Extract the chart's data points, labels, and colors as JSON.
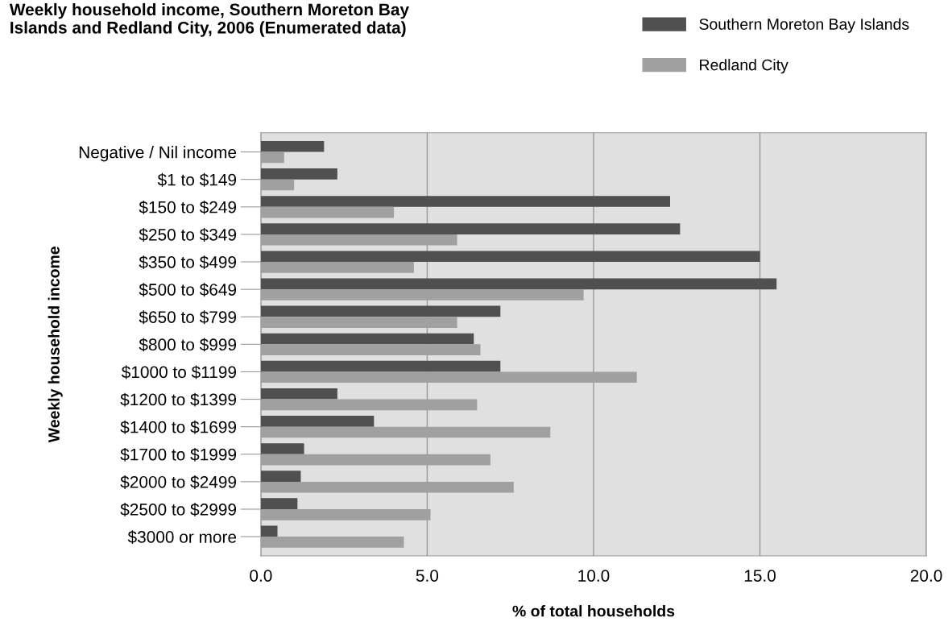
{
  "chart_data": {
    "type": "bar",
    "orientation": "horizontal",
    "title": "Weekly household income, Southern Moreton Bay\nIslands and Redland City, 2006 (Enumerated data)",
    "xlabel": "% of total households",
    "ylabel": "Weekly household income",
    "categories": [
      "Negative / Nil income",
      "$1 to $149",
      "$150 to $249",
      "$250 to $349",
      "$350 to $499",
      "$500 to $649",
      "$650 to $799",
      "$800 to $999",
      "$1000 to $1199",
      "$1200 to $1399",
      "$1400 to $1699",
      "$1700 to $1999",
      "$2000 to $2499",
      "$2500 to $2999",
      "$3000 or more"
    ],
    "series": [
      {
        "name": "Southern Moreton Bay Islands",
        "color": "#505050",
        "values": [
          1.9,
          2.3,
          12.3,
          12.6,
          15.0,
          15.5,
          7.2,
          6.4,
          7.2,
          2.3,
          3.4,
          1.3,
          1.2,
          1.1,
          0.5
        ]
      },
      {
        "name": "Redland City",
        "color": "#a0a0a0",
        "values": [
          0.7,
          1.0,
          4.0,
          5.9,
          4.6,
          9.7,
          5.9,
          6.6,
          11.3,
          6.5,
          8.7,
          6.9,
          7.6,
          5.1,
          4.3
        ]
      }
    ],
    "xlim": [
      0,
      20
    ],
    "xticks": [
      {
        "value": 0,
        "label": "0.0"
      },
      {
        "value": 5,
        "label": "5.0"
      },
      {
        "value": 10,
        "label": "10.0"
      },
      {
        "value": 15,
        "label": "15.0"
      },
      {
        "value": 20,
        "label": "20.0"
      }
    ],
    "grid": "x",
    "legend": "top right"
  }
}
